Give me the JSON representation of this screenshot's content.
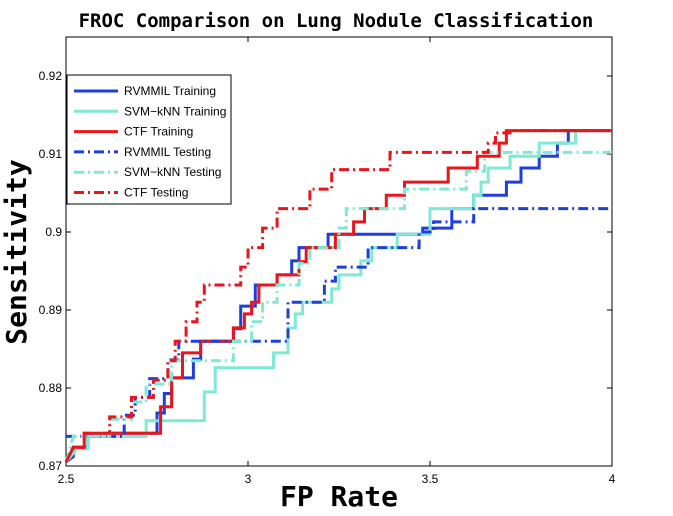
{
  "chart_data": {
    "type": "line",
    "title": "FROC Comparison on Lung Nodule Classification",
    "xlabel": "FP Rate",
    "ylabel": "Sensitivity",
    "xlim": [
      2.5,
      4
    ],
    "ylim": [
      0.87,
      0.925
    ],
    "xticks": [
      2.5,
      3,
      3.5,
      4
    ],
    "xtick_labels": [
      "2.5",
      "3",
      "3.5",
      "4"
    ],
    "yticks": [
      0.87,
      0.88,
      0.89,
      0.9,
      0.91,
      0.92
    ],
    "ytick_labels": [
      "0.87",
      "0.88",
      "0.89",
      "0.9",
      "0.91",
      "0.92"
    ],
    "grid": false,
    "legend_position": "top-left",
    "series": [
      {
        "name": "RVMMIL Training",
        "color": "#1f3fdc",
        "style": "solid",
        "points": [
          [
            2.5,
            0.8705
          ],
          [
            2.52,
            0.8712
          ],
          [
            2.52,
            0.8724
          ],
          [
            2.56,
            0.8724
          ],
          [
            2.56,
            0.8738
          ],
          [
            2.62,
            0.8738
          ],
          [
            2.62,
            0.8742
          ],
          [
            2.75,
            0.8742
          ],
          [
            2.75,
            0.8768
          ],
          [
            2.77,
            0.8768
          ],
          [
            2.77,
            0.8793
          ],
          [
            2.79,
            0.8793
          ],
          [
            2.79,
            0.8813
          ],
          [
            2.85,
            0.8813
          ],
          [
            2.85,
            0.8837
          ],
          [
            2.87,
            0.8837
          ],
          [
            2.87,
            0.886
          ],
          [
            2.96,
            0.886
          ],
          [
            2.96,
            0.8876
          ],
          [
            2.98,
            0.8876
          ],
          [
            2.98,
            0.8905
          ],
          [
            3.02,
            0.8905
          ],
          [
            3.02,
            0.8932
          ],
          [
            3.08,
            0.8932
          ],
          [
            3.08,
            0.8945
          ],
          [
            3.12,
            0.8945
          ],
          [
            3.12,
            0.8963
          ],
          [
            3.14,
            0.8963
          ],
          [
            3.14,
            0.898
          ],
          [
            3.22,
            0.898
          ],
          [
            3.22,
            0.8997
          ],
          [
            3.48,
            0.8997
          ],
          [
            3.48,
            0.9005
          ],
          [
            3.56,
            0.9005
          ],
          [
            3.56,
            0.903
          ],
          [
            3.62,
            0.903
          ],
          [
            3.62,
            0.9047
          ],
          [
            3.71,
            0.9047
          ],
          [
            3.71,
            0.9064
          ],
          [
            3.75,
            0.9064
          ],
          [
            3.75,
            0.9082
          ],
          [
            3.8,
            0.9082
          ],
          [
            3.8,
            0.9097
          ],
          [
            3.85,
            0.9097
          ],
          [
            3.85,
            0.9114
          ],
          [
            3.88,
            0.9114
          ],
          [
            3.88,
            0.913
          ],
          [
            4.0,
            0.913
          ]
        ]
      },
      {
        "name": "SVM−kNN Training",
        "color": "#7fe9d6",
        "style": "solid",
        "points": [
          [
            2.5,
            0.8705
          ],
          [
            2.53,
            0.8722
          ],
          [
            2.56,
            0.8722
          ],
          [
            2.56,
            0.8738
          ],
          [
            2.72,
            0.8738
          ],
          [
            2.72,
            0.8758
          ],
          [
            2.88,
            0.8758
          ],
          [
            2.88,
            0.8795
          ],
          [
            2.91,
            0.8795
          ],
          [
            2.91,
            0.8826
          ],
          [
            3.07,
            0.8826
          ],
          [
            3.07,
            0.8845
          ],
          [
            3.11,
            0.8845
          ],
          [
            3.11,
            0.8877
          ],
          [
            3.13,
            0.8877
          ],
          [
            3.13,
            0.8895
          ],
          [
            3.15,
            0.8895
          ],
          [
            3.15,
            0.891
          ],
          [
            3.23,
            0.891
          ],
          [
            3.23,
            0.8927
          ],
          [
            3.25,
            0.8927
          ],
          [
            3.25,
            0.8945
          ],
          [
            3.31,
            0.8945
          ],
          [
            3.31,
            0.8963
          ],
          [
            3.34,
            0.8963
          ],
          [
            3.34,
            0.898
          ],
          [
            3.41,
            0.898
          ],
          [
            3.41,
            0.8997
          ],
          [
            3.5,
            0.8997
          ],
          [
            3.5,
            0.903
          ],
          [
            3.62,
            0.903
          ],
          [
            3.62,
            0.9047
          ],
          [
            3.64,
            0.9047
          ],
          [
            3.64,
            0.9064
          ],
          [
            3.66,
            0.9064
          ],
          [
            3.66,
            0.9082
          ],
          [
            3.72,
            0.9082
          ],
          [
            3.72,
            0.9097
          ],
          [
            3.8,
            0.9097
          ],
          [
            3.8,
            0.9114
          ],
          [
            3.9,
            0.9114
          ],
          [
            3.9,
            0.913
          ],
          [
            4.0,
            0.913
          ]
        ]
      },
      {
        "name": "CTF Training",
        "color": "#e8161b",
        "style": "solid",
        "points": [
          [
            2.5,
            0.8705
          ],
          [
            2.52,
            0.8724
          ],
          [
            2.55,
            0.8724
          ],
          [
            2.55,
            0.8742
          ],
          [
            2.76,
            0.8742
          ],
          [
            2.76,
            0.8776
          ],
          [
            2.79,
            0.8776
          ],
          [
            2.79,
            0.8813
          ],
          [
            2.82,
            0.8813
          ],
          [
            2.82,
            0.8845
          ],
          [
            2.87,
            0.8845
          ],
          [
            2.87,
            0.886
          ],
          [
            2.96,
            0.886
          ],
          [
            2.96,
            0.8877
          ],
          [
            2.99,
            0.8877
          ],
          [
            2.99,
            0.8895
          ],
          [
            3.01,
            0.8895
          ],
          [
            3.01,
            0.891
          ],
          [
            3.03,
            0.891
          ],
          [
            3.03,
            0.8932
          ],
          [
            3.08,
            0.8932
          ],
          [
            3.08,
            0.8945
          ],
          [
            3.14,
            0.8945
          ],
          [
            3.14,
            0.8962
          ],
          [
            3.16,
            0.8962
          ],
          [
            3.16,
            0.898
          ],
          [
            3.24,
            0.898
          ],
          [
            3.24,
            0.8997
          ],
          [
            3.29,
            0.8997
          ],
          [
            3.29,
            0.9013
          ],
          [
            3.32,
            0.9013
          ],
          [
            3.32,
            0.903
          ],
          [
            3.38,
            0.903
          ],
          [
            3.38,
            0.9047
          ],
          [
            3.43,
            0.9047
          ],
          [
            3.43,
            0.9064
          ],
          [
            3.55,
            0.9064
          ],
          [
            3.55,
            0.9082
          ],
          [
            3.63,
            0.9082
          ],
          [
            3.63,
            0.9097
          ],
          [
            3.69,
            0.9097
          ],
          [
            3.69,
            0.9114
          ],
          [
            3.71,
            0.9114
          ],
          [
            3.71,
            0.913
          ],
          [
            4.0,
            0.913
          ]
        ]
      },
      {
        "name": "RVMMIL Testing",
        "color": "#1f3fdc",
        "style": "dashdot",
        "points": [
          [
            2.5,
            0.8738
          ],
          [
            2.66,
            0.8738
          ],
          [
            2.66,
            0.8765
          ],
          [
            2.69,
            0.8765
          ],
          [
            2.69,
            0.8788
          ],
          [
            2.73,
            0.8788
          ],
          [
            2.73,
            0.8812
          ],
          [
            2.78,
            0.8812
          ],
          [
            2.78,
            0.8836
          ],
          [
            2.81,
            0.8836
          ],
          [
            2.81,
            0.886
          ],
          [
            3.11,
            0.886
          ],
          [
            3.11,
            0.891
          ],
          [
            3.21,
            0.891
          ],
          [
            3.21,
            0.8937
          ],
          [
            3.24,
            0.8937
          ],
          [
            3.24,
            0.8955
          ],
          [
            3.33,
            0.8955
          ],
          [
            3.33,
            0.898
          ],
          [
            3.47,
            0.898
          ],
          [
            3.47,
            0.9
          ],
          [
            3.51,
            0.9
          ],
          [
            3.51,
            0.9013
          ],
          [
            3.62,
            0.9013
          ],
          [
            3.62,
            0.903
          ],
          [
            4.0,
            0.903
          ]
        ]
      },
      {
        "name": "SVM−kNN Testing",
        "color": "#7fe9d6",
        "style": "dashdot",
        "points": [
          [
            2.5,
            0.8705
          ],
          [
            2.52,
            0.8738
          ],
          [
            2.62,
            0.8738
          ],
          [
            2.62,
            0.876
          ],
          [
            2.68,
            0.876
          ],
          [
            2.68,
            0.8782
          ],
          [
            2.72,
            0.8782
          ],
          [
            2.72,
            0.8805
          ],
          [
            2.79,
            0.8805
          ],
          [
            2.79,
            0.8835
          ],
          [
            2.96,
            0.8835
          ],
          [
            2.96,
            0.886
          ],
          [
            3.01,
            0.886
          ],
          [
            3.01,
            0.8885
          ],
          [
            3.04,
            0.8885
          ],
          [
            3.04,
            0.891
          ],
          [
            3.08,
            0.891
          ],
          [
            3.08,
            0.8932
          ],
          [
            3.14,
            0.8932
          ],
          [
            3.14,
            0.896
          ],
          [
            3.17,
            0.896
          ],
          [
            3.17,
            0.898
          ],
          [
            3.25,
            0.898
          ],
          [
            3.25,
            0.9005
          ],
          [
            3.27,
            0.9005
          ],
          [
            3.27,
            0.903
          ],
          [
            3.43,
            0.903
          ],
          [
            3.43,
            0.9055
          ],
          [
            3.6,
            0.9055
          ],
          [
            3.6,
            0.9078
          ],
          [
            3.65,
            0.9078
          ],
          [
            3.65,
            0.9102
          ],
          [
            4.0,
            0.9102
          ]
        ]
      },
      {
        "name": "CTF Testing",
        "color": "#e8161b",
        "style": "dashdot",
        "points": [
          [
            2.5,
            0.8705
          ],
          [
            2.52,
            0.8724
          ],
          [
            2.55,
            0.8724
          ],
          [
            2.55,
            0.8742
          ],
          [
            2.62,
            0.8742
          ],
          [
            2.62,
            0.8763
          ],
          [
            2.68,
            0.8763
          ],
          [
            2.68,
            0.8788
          ],
          [
            2.74,
            0.8788
          ],
          [
            2.74,
            0.881
          ],
          [
            2.78,
            0.881
          ],
          [
            2.78,
            0.8835
          ],
          [
            2.8,
            0.8835
          ],
          [
            2.8,
            0.886
          ],
          [
            2.83,
            0.886
          ],
          [
            2.83,
            0.8885
          ],
          [
            2.86,
            0.8885
          ],
          [
            2.86,
            0.891
          ],
          [
            2.88,
            0.891
          ],
          [
            2.88,
            0.8932
          ],
          [
            2.98,
            0.8932
          ],
          [
            2.98,
            0.8955
          ],
          [
            3.0,
            0.8955
          ],
          [
            3.0,
            0.898
          ],
          [
            3.04,
            0.898
          ],
          [
            3.04,
            0.9005
          ],
          [
            3.08,
            0.9005
          ],
          [
            3.08,
            0.903
          ],
          [
            3.17,
            0.903
          ],
          [
            3.17,
            0.9055
          ],
          [
            3.23,
            0.9055
          ],
          [
            3.23,
            0.908
          ],
          [
            3.39,
            0.908
          ],
          [
            3.39,
            0.9102
          ],
          [
            3.66,
            0.9102
          ],
          [
            3.66,
            0.9114
          ],
          [
            3.68,
            0.9114
          ],
          [
            3.68,
            0.9127
          ],
          [
            3.72,
            0.9127
          ],
          [
            3.72,
            0.913
          ],
          [
            4.0,
            0.913
          ]
        ]
      }
    ]
  }
}
